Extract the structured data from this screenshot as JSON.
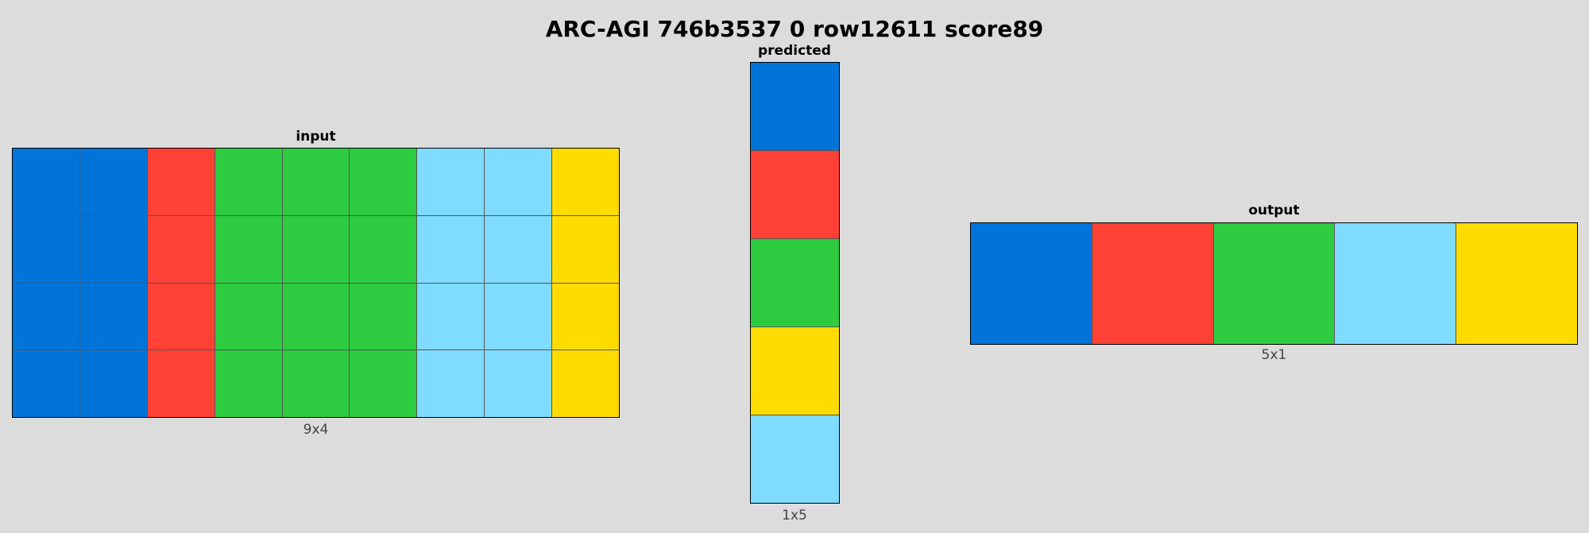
{
  "title": "ARC-AGI 746b3537 0 row12611 score89",
  "palette": {
    "1": "#0074D9",
    "2": "#FF4136",
    "3": "#2ECC40",
    "4": "#FFDC00",
    "8": "#7FDBFF"
  },
  "panels": {
    "input": {
      "label": "input",
      "dims": "9x4",
      "grid": [
        [
          1,
          1,
          2,
          3,
          3,
          3,
          8,
          8,
          4
        ],
        [
          1,
          1,
          2,
          3,
          3,
          3,
          8,
          8,
          4
        ],
        [
          1,
          1,
          2,
          3,
          3,
          3,
          8,
          8,
          4
        ],
        [
          1,
          1,
          2,
          3,
          3,
          3,
          8,
          8,
          4
        ]
      ]
    },
    "predicted": {
      "label": "predicted",
      "dims": "1x5",
      "grid": [
        [
          1
        ],
        [
          2
        ],
        [
          3
        ],
        [
          4
        ],
        [
          8
        ]
      ]
    },
    "output": {
      "label": "output",
      "dims": "5x1",
      "grid": [
        [
          1,
          2,
          3,
          8,
          4
        ]
      ]
    }
  }
}
